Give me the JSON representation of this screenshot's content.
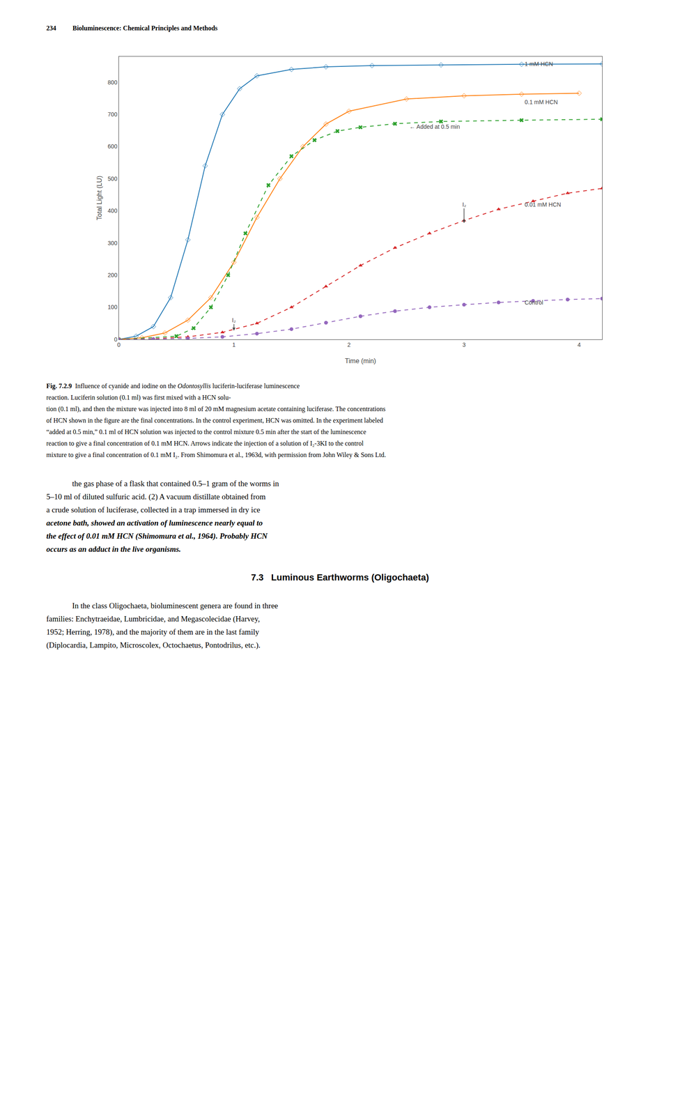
{
  "chart_data": {
    "type": "line",
    "xlabel": "Time (min)",
    "ylabel": "Total Light (LU)",
    "xlim": [
      0,
      4.2
    ],
    "ylim": [
      0,
      880
    ],
    "xticks": [
      0,
      1,
      2,
      3,
      4
    ],
    "yticks": [
      0,
      100,
      200,
      300,
      400,
      500,
      600,
      700,
      800
    ],
    "grid": false,
    "series": [
      {
        "x": [
          0.0,
          0.15,
          0.3,
          0.45,
          0.6,
          0.75,
          0.9,
          1.05,
          1.2,
          1.5,
          1.8,
          2.2,
          2.8,
          3.5,
          4.2
        ],
        "values": [
          0,
          10,
          40,
          130,
          310,
          540,
          700,
          780,
          820,
          840,
          848,
          852,
          854,
          856,
          857
        ],
        "marker": "diamond-open",
        "line_style": "solid"
      },
      {
        "x": [
          0.0,
          0.2,
          0.4,
          0.6,
          0.8,
          1.0,
          1.2,
          1.4,
          1.6,
          1.8,
          2.0,
          2.5,
          3.0,
          3.5,
          4.0
        ],
        "values": [
          0,
          5,
          20,
          60,
          130,
          240,
          380,
          500,
          600,
          670,
          710,
          748,
          758,
          763,
          766
        ],
        "marker": "diamond-open",
        "line_style": "solid"
      },
      {
        "x": [
          0.0,
          0.5,
          0.65,
          0.8,
          0.95,
          1.1,
          1.3,
          1.5,
          1.7,
          1.9,
          2.1,
          2.4,
          2.8,
          3.5,
          4.2
        ],
        "values": [
          0,
          10,
          35,
          100,
          200,
          330,
          480,
          570,
          620,
          648,
          660,
          671,
          678,
          682,
          685
        ],
        "marker": "x",
        "line_style": "dash"
      },
      {
        "x": [
          0.0,
          0.3,
          0.6,
          0.9,
          1.2,
          1.5,
          1.8,
          2.1,
          2.4,
          2.7,
          3.0,
          3.3,
          3.6,
          3.9,
          4.2
        ],
        "values": [
          0,
          2,
          8,
          22,
          50,
          100,
          165,
          230,
          285,
          330,
          370,
          405,
          430,
          455,
          470
        ],
        "marker": "triangle-up",
        "line_style": "dash"
      },
      {
        "x": [
          0.0,
          0.3,
          0.6,
          0.9,
          1.2,
          1.5,
          1.8,
          2.1,
          2.4,
          2.7,
          3.0,
          3.3,
          3.6,
          3.9,
          4.2
        ],
        "values": [
          0,
          1,
          3,
          8,
          18,
          32,
          52,
          72,
          88,
          100,
          108,
          115,
          120,
          124,
          127
        ],
        "marker": "circle",
        "line_style": "dash"
      }
    ],
    "annotations": [
      {
        "text": "1 mM HCN",
        "x": 3.52,
        "y": 857
      },
      {
        "text": "0.1 mM HCN",
        "x": 3.52,
        "y": 738
      },
      {
        "text": "← Added at 0.5 min",
        "x": 2.52,
        "y": 662
      },
      {
        "text": "0.01 mM HCN",
        "x": 3.52,
        "y": 420
      },
      {
        "text": "Control",
        "x": 3.52,
        "y": 115
      }
    ],
    "arrows": [
      {
        "text": "I₂",
        "x": 1.0,
        "y": 27,
        "y_start": 60
      },
      {
        "text": "I₂",
        "x": 3.0,
        "y": 362,
        "y_start": 420
      }
    ]
  },
  "page": {
    "header_number": "234",
    "header_title": "Bioluminescence: Chemical Principles and Methods",
    "caption_first_line": [
      {
        "text": "Fig. 7.2.9",
        "bold": true
      },
      {
        "text": "  Influence of cyanide and iodine on the ",
        "bold": false
      },
      {
        "text": "Odontosyllis",
        "italic": true
      },
      {
        "text": " luciferin-luciferase luminescence",
        "bold": false
      }
    ],
    "caption_rest": [
      "reaction. Luciferin solution (0.1 ml) was first mixed with a HCN solu-",
      "tion (0.1 ml), and then the mixture was injected into 8 ml of 20 mM magnesium acetate containing luciferase. The concentrations",
      "of HCN shown in the figure are the final concentrations. In the control experiment, HCN was omitted. In the experiment labeled",
      "“added at 0.5 min,” 0.1 ml of HCN solution was injected to the control mixture 0.5 min after the start of the luminescence",
      "reaction to give a final concentration of 0.1 mM HCN. Arrows indicate the injection of a solution of I₂-3KI to the control",
      "mixture to give a final concentration of 0.1 mM I₂. From Shimomura et al., 1963d, with permission from John Wiley & Sons Ltd."
    ],
    "body_paragraph": [
      {
        "text": "the gas phase of a flask that contained 0.5–1 gram of the worms in",
        "bold": false,
        "italic": false
      },
      {
        "text": "5–10 ml of diluted sulfuric acid. (2) A vacuum distillate obtained from",
        "bold": false,
        "italic": false
      },
      {
        "text": "a crude solution of luciferase, collected in a trap immersed in dry ice",
        "bold": false,
        "italic": false
      },
      {
        "text": "acetone bath, showed an activation of luminescence nearly equal to",
        "bold": true,
        "italic": true
      },
      {
        "text": "the effect of 0.01 mM HCN (Shimomura et al., 1964). Probably HCN",
        "bold": true,
        "italic": true
      },
      {
        "text": "occurs as an adduct in the live organisms.",
        "bold": true,
        "italic": true
      }
    ],
    "section_title": "7.3   Luminous Earthworms (Oligochaeta)",
    "section_body": [
      "In the class Oligochaeta, bioluminescent genera are found in three",
      "families: Enchytraeidae, Lumbricidae, and Megascolecidae (Harvey,",
      "1952; Herring, 1978), and the majority of them are in the last family",
      "(Diplocardia, Lampito, Microscolex, Octochaetus, Pontodrilus, etc.)."
    ]
  }
}
